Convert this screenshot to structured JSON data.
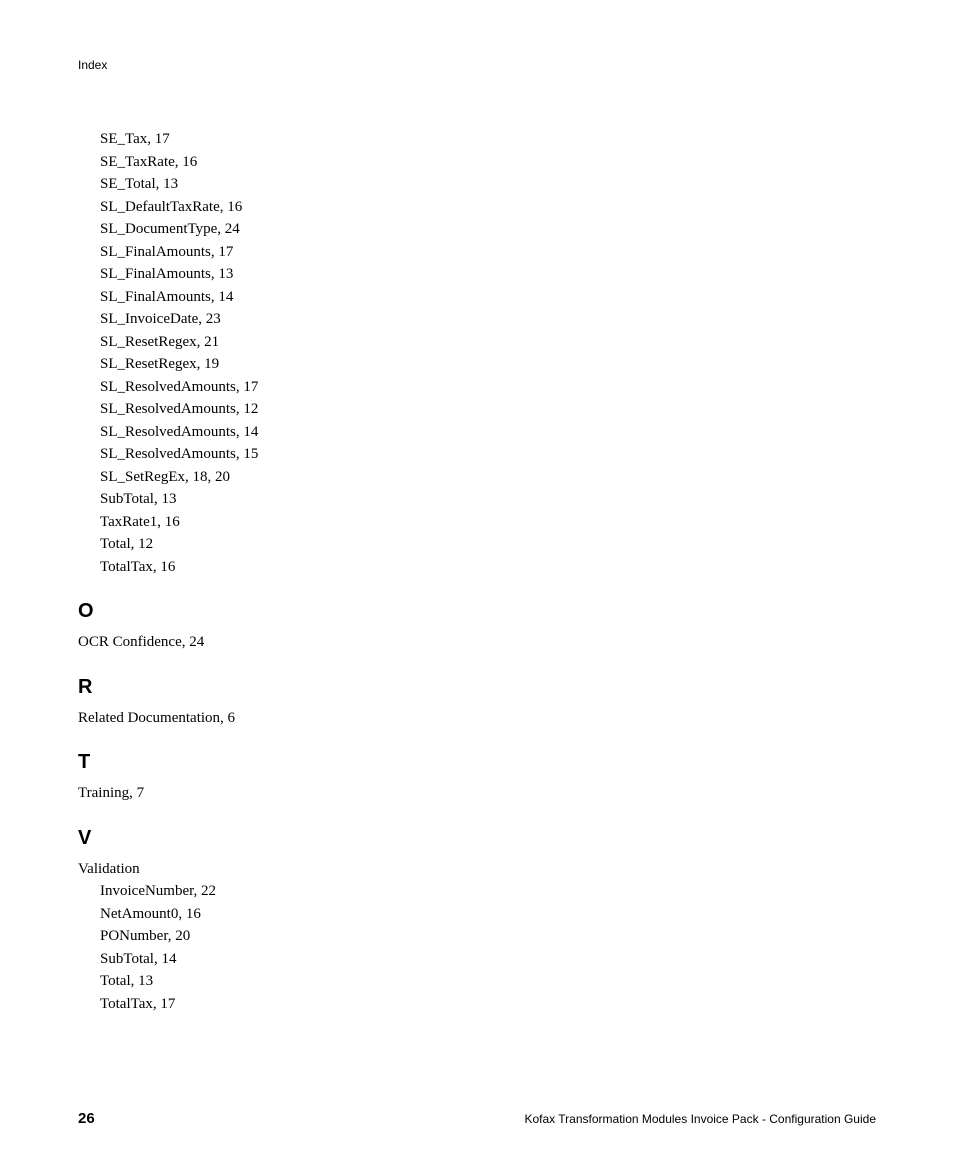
{
  "header": "Index",
  "preEntries": [
    "SE_Tax, 17",
    "SE_TaxRate, 16",
    "SE_Total, 13",
    "SL_DefaultTaxRate, 16",
    "SL_DocumentType, 24",
    "SL_FinalAmounts, 17",
    "SL_FinalAmounts, 13",
    "SL_FinalAmounts, 14",
    "SL_InvoiceDate, 23",
    "SL_ResetRegex, 21",
    "SL_ResetRegex, 19",
    "SL_ResolvedAmounts, 17",
    "SL_ResolvedAmounts, 12",
    "SL_ResolvedAmounts, 14",
    "SL_ResolvedAmounts, 15",
    "SL_SetRegEx, 18, 20",
    "SubTotal, 13",
    "TaxRate1, 16",
    "Total, 12",
    "TotalTax, 16"
  ],
  "sections": [
    {
      "letter": "O",
      "entries": [
        {
          "text": "OCR Confidence, 24",
          "sub": []
        }
      ]
    },
    {
      "letter": "R",
      "entries": [
        {
          "text": "Related Documentation, 6",
          "sub": []
        }
      ]
    },
    {
      "letter": "T",
      "entries": [
        {
          "text": "Training, 7",
          "sub": []
        }
      ]
    },
    {
      "letter": "V",
      "entries": [
        {
          "text": "Validation",
          "sub": [
            "InvoiceNumber, 22",
            "NetAmount0, 16",
            "PONumber, 20",
            "SubTotal, 14",
            "Total, 13",
            "TotalTax, 17"
          ]
        }
      ]
    }
  ],
  "footer": {
    "pageNumber": "26",
    "docTitle": "Kofax Transformation Modules Invoice Pack - Configuration Guide"
  }
}
